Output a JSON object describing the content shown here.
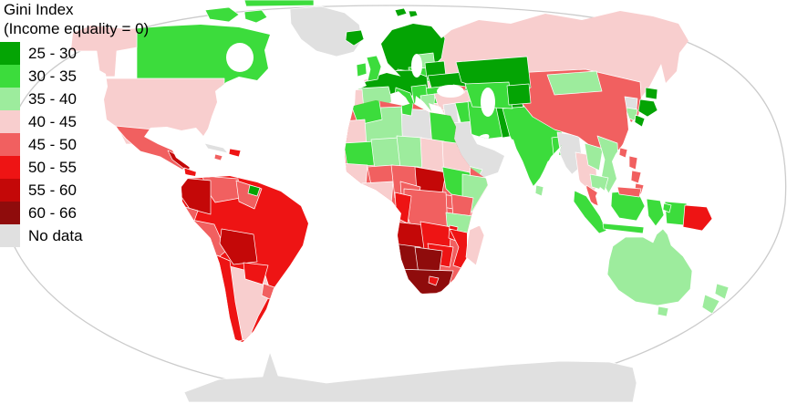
{
  "legend": {
    "title_line1": "Gini Index",
    "title_line2": "(Income equality = 0)",
    "items": [
      {
        "range": "25 - 30",
        "color": "#04A404"
      },
      {
        "range": "30 - 35",
        "color": "#3CDC3C"
      },
      {
        "range": "35 - 40",
        "color": "#9DEC9D"
      },
      {
        "range": "40 - 45",
        "color": "#F8CECE"
      },
      {
        "range": "45 - 50",
        "color": "#F16060"
      },
      {
        "range": "50 - 55",
        "color": "#EE1414"
      },
      {
        "range": "55 - 60",
        "color": "#C40808"
      },
      {
        "range": "60 - 66",
        "color": "#8F0C0C"
      },
      {
        "range": "No data",
        "color": "#E0E0E0"
      }
    ]
  },
  "map": {
    "projection": "Robinson world map",
    "ocean_color": "#FFFFFF",
    "outline_color": "#CBCBCB",
    "border_color": "#FFFFFF",
    "regions": {
      "greenland": "No data",
      "canada": "30 - 35",
      "united-states": "40 - 45",
      "mexico": "45 - 50",
      "guatemala-honduras": "55 - 60",
      "nicaragua-panama": "50 - 55",
      "cuba": "No data",
      "haiti-dominican": "50 - 55",
      "jamaica": "45 - 50",
      "colombia": "55 - 60",
      "venezuela": "45 - 50",
      "guyana-suriname": "45 - 50",
      "french-guiana": "25 - 30",
      "ecuador": "45 - 50",
      "peru": "45 - 50",
      "brazil": "50 - 55",
      "bolivia": "55 - 60",
      "paraguay": "50 - 55",
      "argentina": "40 - 45",
      "chile": "50 - 55",
      "uruguay": "45 - 50",
      "iceland": "25 - 30",
      "svalbard": "25 - 30",
      "united-kingdom": "30 - 35",
      "ireland": "30 - 35",
      "scandinavia": "25 - 30",
      "denmark": "25 - 30",
      "france-central-europe": "25 - 30",
      "poland": "30 - 35",
      "baltic-states": "35 - 40",
      "belarus": "25 - 30",
      "ukraine": "25 - 30",
      "romania-bulgaria": "30 - 35",
      "balkans": "30 - 35",
      "greece": "35 - 40",
      "italy": "30 - 35",
      "spain": "35 - 40",
      "portugal": "40 - 45",
      "russia": "40 - 45",
      "turkey": "40 - 45",
      "georgia-caucasus": "45 - 50",
      "levant": "No data",
      "iraq": "30 - 35",
      "arabia": "No data",
      "yemen": "35 - 40",
      "iran": "30 - 35",
      "afghanistan": "25 - 30",
      "pakistan": "30 - 35",
      "india": "30 - 35",
      "bangladesh": "30 - 35",
      "sri-lanka": "35 - 40",
      "kazakhstan": "25 - 30",
      "uzbekistan-turkmenistan": "30 - 35",
      "kyrgyzstan-tajikistan": "25 - 30",
      "mongolia": "35 - 40",
      "china": "45 - 50",
      "north-korea": "No data",
      "south-korea": "35 - 40",
      "japan": "25 - 30",
      "taiwan": "45 - 50",
      "myanmar": "No data",
      "thailand": "40 - 45",
      "laos": "35 - 40",
      "vietnam": "35 - 40",
      "cambodia": "35 - 40",
      "malaysia": "45 - 50",
      "philippines": "45 - 50",
      "indonesia": "30 - 35",
      "papua-new-guinea": "50 - 55",
      "australia": "35 - 40",
      "new-zealand": "35 - 40",
      "morocco": "30 - 35",
      "western-sahara": "40 - 45",
      "algeria": "35 - 40",
      "tunisia": "30 - 35",
      "libya": "No data",
      "egypt": "30 - 35",
      "mauritania": "30 - 35",
      "mali": "35 - 40",
      "niger": "35 - 40",
      "chad": "40 - 45",
      "sudan": "40 - 45",
      "senegal-guinea": "40 - 45",
      "sierra-leone-liberia": "45 - 50",
      "burkina-faso": "45 - 50",
      "ivory-coast-ghana": "40 - 45",
      "nigeria": "45 - 50",
      "central-african-republic": "55 - 60",
      "cameroon": "45 - 50",
      "central-africa": "45 - 50",
      "ethiopia": "30 - 35",
      "somalia": "35 - 40",
      "uganda": "45 - 50",
      "kenya": "45 - 50",
      "dr-congo": "45 - 50",
      "congo-gabon": "50 - 55",
      "tanzania": "35 - 40",
      "angola": "55 - 60",
      "zambia": "50 - 55",
      "malawi": "50 - 55",
      "mozambique": "50 - 55",
      "zimbabwe": "50 - 55",
      "namibia": "60 - 66",
      "botswana": "60 - 66",
      "south-africa": "60 - 66",
      "lesotho": "50 - 55",
      "madagascar": "40 - 45",
      "antarctica": "No data"
    }
  }
}
